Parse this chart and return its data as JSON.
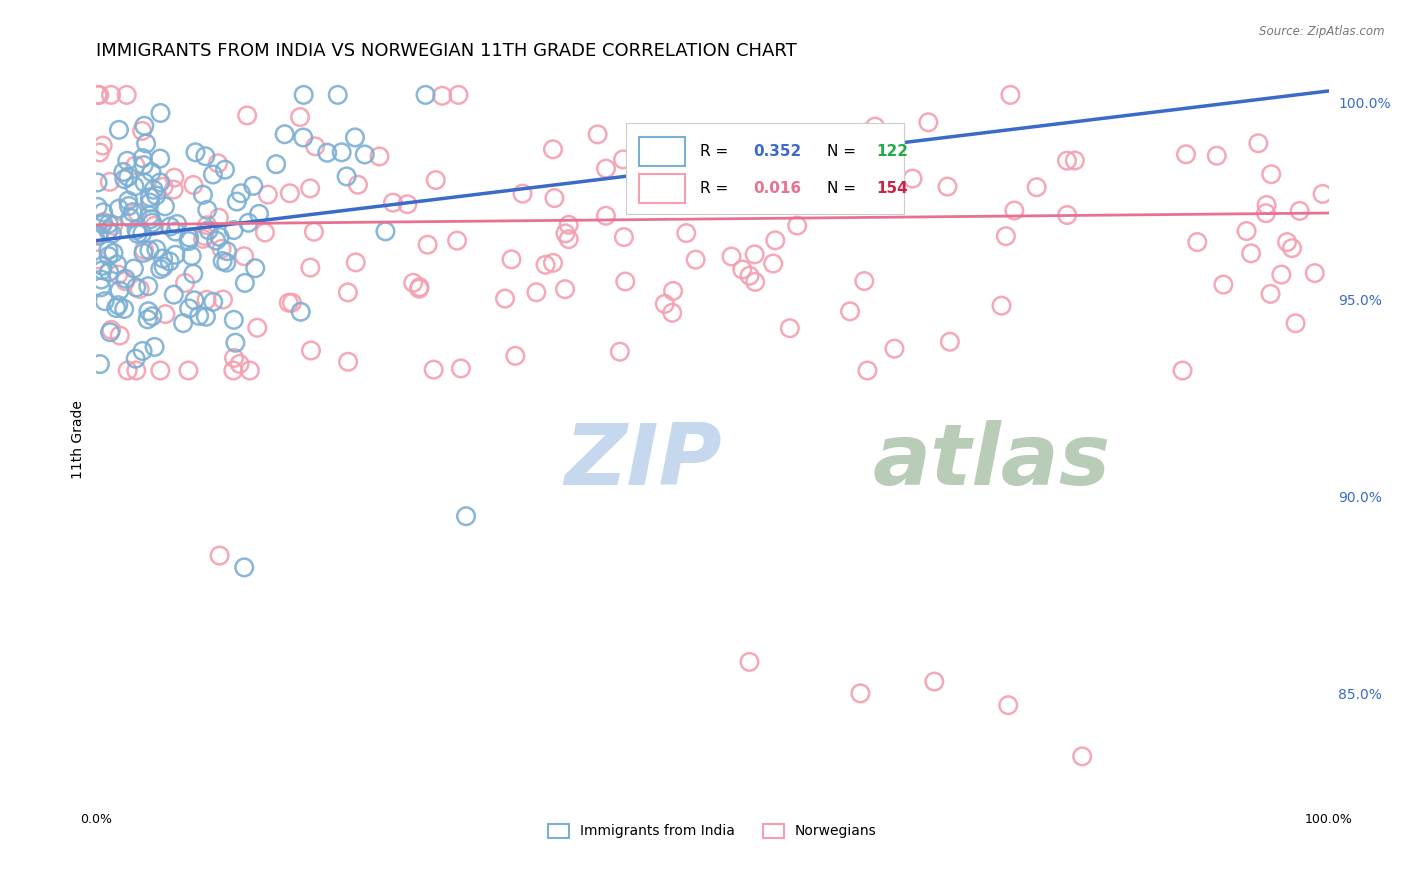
{
  "title": "IMMIGRANTS FROM INDIA VS NORWEGIAN 11TH GRADE CORRELATION CHART",
  "source": "Source: ZipAtlas.com",
  "ylabel": "11th Grade",
  "legend_blue_label": "Immigrants from India",
  "legend_pink_label": "Norwegians",
  "r_blue_val": "0.352",
  "n_blue_val": "122",
  "r_pink_val": "0.016",
  "n_pink_val": "154",
  "blue_scatter_color": "#7BAFD4",
  "pink_scatter_color": "#F4A0B0",
  "blue_line_color": "#3A6BC9",
  "pink_line_color": "#E87090",
  "r_blue_color": "#3A6BC9",
  "n_blue_color": "#22AA44",
  "r_pink_color": "#E87090",
  "n_pink_color": "#CC2244",
  "background_color": "#FFFFFF",
  "grid_color": "#DDDDDD",
  "title_fontsize": 13,
  "axis_fontsize": 9,
  "ytick_color": "#3A6BC9",
  "watermark_zip": "ZIP",
  "watermark_atlas": "atlas",
  "watermark_color_zip": "#C5D8EE",
  "watermark_color_atlas": "#B8CCB8",
  "seed": 7,
  "ylim_low": 0.822,
  "ylim_high": 1.007,
  "xlim_low": 0.0,
  "xlim_high": 1.0,
  "y_ticks": [
    0.85,
    0.9,
    0.95,
    1.0
  ],
  "y_tick_labels": [
    "85.0%",
    "90.0%",
    "95.0%",
    "100.0%"
  ],
  "x_ticks": [
    0.0,
    0.1,
    0.2,
    0.3,
    0.4,
    0.5,
    0.6,
    0.7,
    0.8,
    0.9,
    1.0
  ],
  "x_tick_labels": [
    "0.0%",
    "",
    "",
    "",
    "",
    "",
    "",
    "",
    "",
    "",
    "100.0%"
  ]
}
